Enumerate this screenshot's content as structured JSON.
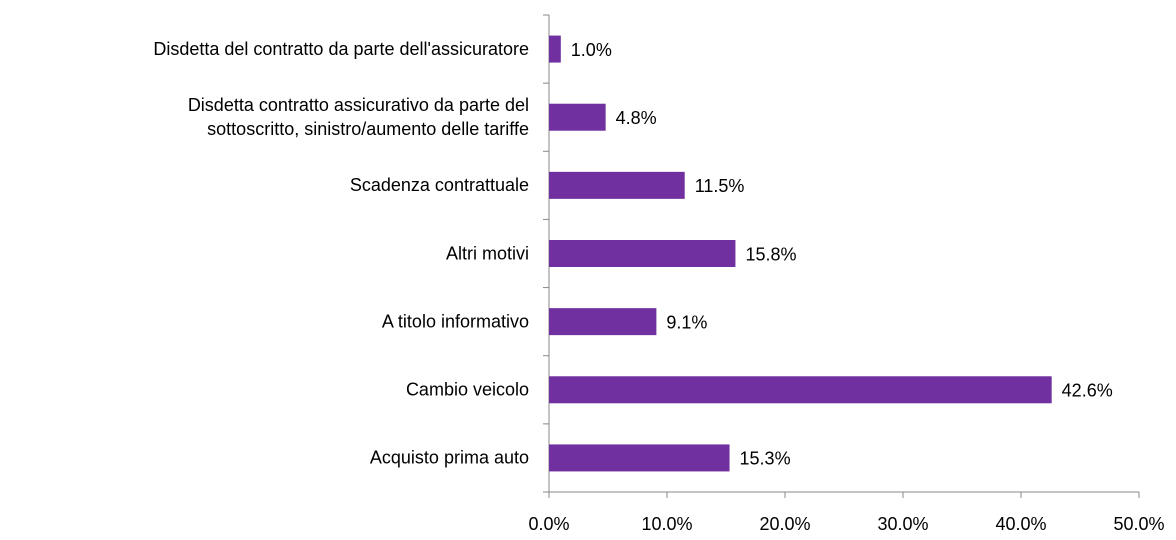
{
  "chart_data": {
    "type": "bar",
    "orientation": "horizontal",
    "categories": [
      "Disdetta del contratto da parte dell'assicuratore",
      "Disdetta contratto assicurativo da parte del\nsottoscritto, sinistro/aumento delle tariffe",
      "Scadenza contrattuale",
      "Altri motivi",
      "A titolo informativo",
      "Cambio veicolo",
      "Acquisto prima auto"
    ],
    "values": [
      1.0,
      4.8,
      11.5,
      15.8,
      9.1,
      42.6,
      15.3
    ],
    "value_labels": [
      "1.0%",
      "4.8%",
      "11.5%",
      "15.8%",
      "9.1%",
      "42.6%",
      "15.3%"
    ],
    "color": "#7030a0",
    "xlim": [
      0,
      50
    ],
    "xticks": [
      {
        "value": 0,
        "label": "0.0%"
      },
      {
        "value": 10,
        "label": "10.0%"
      },
      {
        "value": 20,
        "label": "20.0%"
      },
      {
        "value": 30,
        "label": "30.0%"
      },
      {
        "value": 40,
        "label": "40.0%"
      },
      {
        "value": 50,
        "label": "50.0%"
      }
    ],
    "grid": false
  }
}
